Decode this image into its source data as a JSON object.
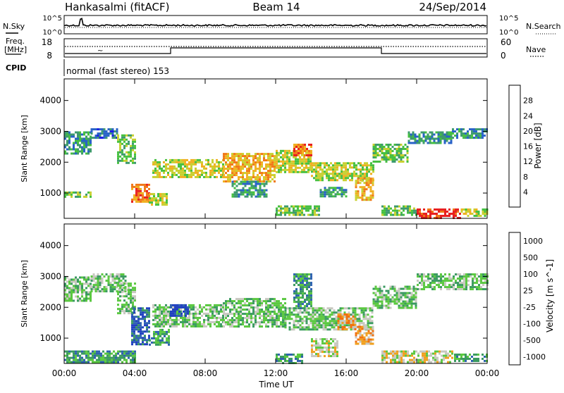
{
  "header": {
    "station": "Hankasalmi (fitACF)",
    "beam": "Beam 14",
    "date": "24/Sep/2014"
  },
  "top_panel": {
    "left_label": "N.Sky",
    "right_label": "N.Search",
    "left_ticks": [
      "10^5",
      "10^0"
    ],
    "right_ticks": [
      "10^5",
      "10^0"
    ]
  },
  "freq_panel": {
    "left_label_line1": "Freq.",
    "left_label_line2": "[MHz]",
    "left_ticks": [
      "18",
      "8"
    ],
    "right_label": "Nave",
    "right_ticks": [
      "60",
      "0"
    ],
    "cpid_label": "CPID",
    "cpid_text": "normal (fast stereo) 153"
  },
  "colors": {
    "power_scale": [
      "#1818e6",
      "#2862c8",
      "#3d9a6e",
      "#46c040",
      "#c8d030",
      "#f0b020",
      "#f07818",
      "#e82020"
    ],
    "velocity_scale": [
      "#2040c0",
      "#2e62b0",
      "#3a9a60",
      "#5ac840",
      "#c8c8c0",
      "#f0a020",
      "#f07010",
      "#e82020"
    ]
  },
  "chart_data": [
    {
      "type": "heatmap",
      "name": "Power",
      "ylabel": "Slant Range [km]",
      "yticks": [
        1000,
        2000,
        3000,
        4000
      ],
      "ylim": [
        180,
        4700
      ],
      "xlim": [
        0,
        24
      ],
      "xticks": [
        "00:00",
        "04:00",
        "08:00",
        "12:00",
        "16:00",
        "20:00",
        "00:00"
      ],
      "colorbar_label": "Power [dB]",
      "colorbar_ticks": [
        "4",
        "8",
        "12",
        "16",
        "20",
        "24",
        "28"
      ],
      "regions": [
        {
          "t": [
            0.0,
            1.5
          ],
          "r": [
            2300,
            3000
          ],
          "level": 2
        },
        {
          "t": [
            1.5,
            3.0
          ],
          "r": [
            2800,
            3100
          ],
          "level": 1
        },
        {
          "t": [
            3.0,
            4.0
          ],
          "r": [
            2000,
            2900
          ],
          "level": 3
        },
        {
          "t": [
            3.8,
            4.8
          ],
          "r": [
            700,
            1300
          ],
          "level": 6
        },
        {
          "t": [
            4.8,
            5.8
          ],
          "r": [
            600,
            1000
          ],
          "level": 4
        },
        {
          "t": [
            0.0,
            1.5
          ],
          "r": [
            850,
            1050
          ],
          "level": 3
        },
        {
          "t": [
            5.0,
            9.0
          ],
          "r": [
            1500,
            2100
          ],
          "level": 4
        },
        {
          "t": [
            9.0,
            12.0
          ],
          "r": [
            1400,
            2300
          ],
          "level": 5
        },
        {
          "t": [
            12.0,
            14.0
          ],
          "r": [
            1700,
            2400
          ],
          "level": 4
        },
        {
          "t": [
            13.0,
            14.0
          ],
          "r": [
            2200,
            2600
          ],
          "level": 6
        },
        {
          "t": [
            14.0,
            17.5
          ],
          "r": [
            1400,
            2000
          ],
          "level": 4
        },
        {
          "t": [
            17.5,
            19.5
          ],
          "r": [
            2000,
            2600
          ],
          "level": 3
        },
        {
          "t": [
            19.5,
            22.0
          ],
          "r": [
            2600,
            3000
          ],
          "level": 2
        },
        {
          "t": [
            22.0,
            24.0
          ],
          "r": [
            2800,
            3100
          ],
          "level": 2
        },
        {
          "t": [
            16.5,
            17.5
          ],
          "r": [
            800,
            1500
          ],
          "level": 5
        },
        {
          "t": [
            18.0,
            20.0
          ],
          "r": [
            300,
            600
          ],
          "level": 3
        },
        {
          "t": [
            20.0,
            22.5
          ],
          "r": [
            200,
            500
          ],
          "level": 7
        },
        {
          "t": [
            22.5,
            24.0
          ],
          "r": [
            250,
            500
          ],
          "level": 4
        },
        {
          "t": [
            12.0,
            14.5
          ],
          "r": [
            300,
            600
          ],
          "level": 3
        },
        {
          "t": [
            9.5,
            11.5
          ],
          "r": [
            900,
            1400
          ],
          "level": 2
        },
        {
          "t": [
            14.5,
            16.0
          ],
          "r": [
            900,
            1200
          ],
          "level": 2
        }
      ]
    },
    {
      "type": "heatmap",
      "name": "Velocity",
      "ylabel": "Slant Range [km]",
      "yticks": [
        1000,
        2000,
        3000,
        4000
      ],
      "ylim": [
        180,
        4700
      ],
      "xlim": [
        0,
        24
      ],
      "xlabel": "Time UT",
      "xticks": [
        "00:00",
        "04:00",
        "08:00",
        "12:00",
        "16:00",
        "20:00",
        "00:00"
      ],
      "colorbar_label": "Velocity [m s^-1]",
      "colorbar_ticks": [
        "1000",
        "500",
        "100",
        "25",
        "-25",
        "-100",
        "-500",
        "-1000"
      ],
      "regions": [
        {
          "t": [
            0.0,
            1.5
          ],
          "r": [
            2200,
            3000
          ],
          "level": 4
        },
        {
          "t": [
            1.5,
            3.5
          ],
          "r": [
            2500,
            3100
          ],
          "level": 4
        },
        {
          "t": [
            3.0,
            4.0
          ],
          "r": [
            1800,
            2800
          ],
          "level": 4
        },
        {
          "t": [
            3.8,
            4.8
          ],
          "r": [
            800,
            2000
          ],
          "level": 6
        },
        {
          "t": [
            4.8,
            6.0
          ],
          "r": [
            800,
            1300
          ],
          "level": 5
        },
        {
          "t": [
            5.0,
            9.0
          ],
          "r": [
            1400,
            2100
          ],
          "level": 4
        },
        {
          "t": [
            9.0,
            12.5
          ],
          "r": [
            1400,
            2300
          ],
          "level": 4
        },
        {
          "t": [
            13.0,
            14.0
          ],
          "r": [
            2000,
            3100
          ],
          "level": 5
        },
        {
          "t": [
            12.5,
            17.5
          ],
          "r": [
            1300,
            2000
          ],
          "level": 4
        },
        {
          "t": [
            14.0,
            15.5
          ],
          "r": [
            400,
            1000
          ],
          "level": 3
        },
        {
          "t": [
            15.5,
            16.5
          ],
          "r": [
            1300,
            1800
          ],
          "level": 2
        },
        {
          "t": [
            16.5,
            17.5
          ],
          "r": [
            800,
            1400
          ],
          "level": 2
        },
        {
          "t": [
            17.5,
            20.0
          ],
          "r": [
            2000,
            2700
          ],
          "level": 4
        },
        {
          "t": [
            20.0,
            24.0
          ],
          "r": [
            2600,
            3100
          ],
          "level": 4
        },
        {
          "t": [
            18.0,
            22.0
          ],
          "r": [
            250,
            600
          ],
          "level": 3
        },
        {
          "t": [
            0.0,
            4.0
          ],
          "r": [
            250,
            600
          ],
          "level": 5
        },
        {
          "t": [
            22.0,
            24.0
          ],
          "r": [
            250,
            500
          ],
          "level": 5
        },
        {
          "t": [
            6.0,
            7.0
          ],
          "r": [
            1700,
            2100
          ],
          "level": 7
        },
        {
          "t": [
            12.0,
            13.5
          ],
          "r": [
            200,
            500
          ],
          "level": 5
        }
      ]
    }
  ]
}
